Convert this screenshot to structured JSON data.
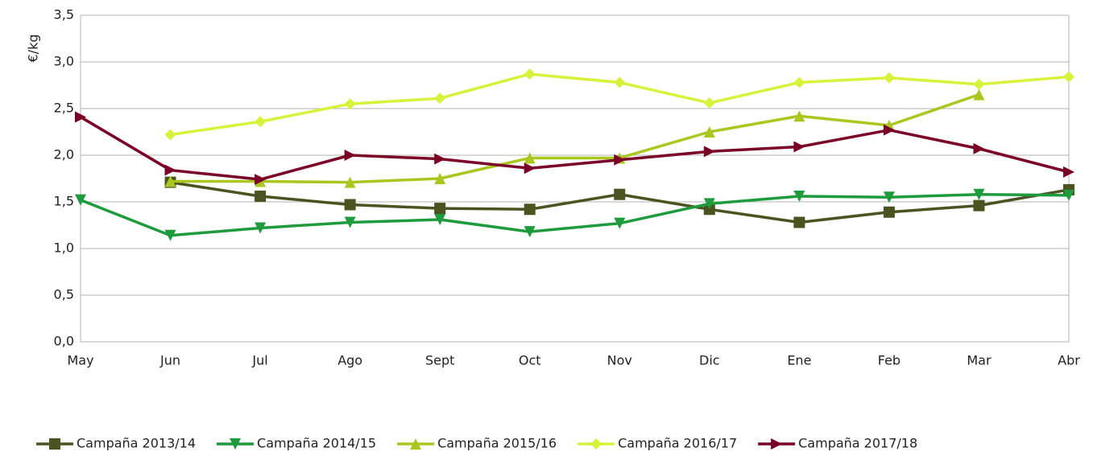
{
  "chart_data": {
    "type": "line",
    "y_label": "€/kg",
    "categories": [
      "May",
      "Jun",
      "Jul",
      "Ago",
      "Sept",
      "Oct",
      "Nov",
      "Dic",
      "Ene",
      "Feb",
      "Mar",
      "Abr"
    ],
    "ylim": [
      0,
      3.5
    ],
    "yticks": [
      {
        "value": 0,
        "label": "0,0"
      },
      {
        "value": 0.5,
        "label": "0,5"
      },
      {
        "value": 1,
        "label": "1,0"
      },
      {
        "value": 1.5,
        "label": "1,5"
      },
      {
        "value": 2,
        "label": "2,0"
      },
      {
        "value": 2.5,
        "label": "2,5"
      },
      {
        "value": 3,
        "label": "3,0"
      },
      {
        "value": 3.5,
        "label": "3,5"
      }
    ],
    "grid": true,
    "legend": "bottom",
    "series": [
      {
        "name": "Campaña 2013/14",
        "color": "#4b5320",
        "marker": "square",
        "values": [
          null,
          1.71,
          1.56,
          1.47,
          1.43,
          1.42,
          1.58,
          1.42,
          1.28,
          1.39,
          1.46,
          1.63
        ]
      },
      {
        "name": "Campaña 2014/15",
        "color": "#1e9b3c",
        "marker": "triangle-down",
        "values": [
          1.52,
          1.14,
          1.22,
          1.28,
          1.31,
          1.18,
          1.27,
          1.48,
          1.56,
          1.55,
          1.58,
          1.57
        ]
      },
      {
        "name": "Campaña 2015/16",
        "color": "#a9c71f",
        "marker": "triangle-up",
        "values": [
          null,
          1.72,
          1.72,
          1.71,
          1.75,
          1.97,
          1.97,
          2.25,
          2.42,
          2.32,
          2.65,
          null
        ]
      },
      {
        "name": "Campaña 2016/17",
        "color": "#d6f23a",
        "marker": "diamond",
        "values": [
          null,
          2.22,
          2.36,
          2.55,
          2.61,
          2.87,
          2.78,
          2.56,
          2.78,
          2.83,
          2.76,
          2.84
        ]
      },
      {
        "name": "Campaña 2017/18",
        "color": "#7b0028",
        "marker": "triangle-right",
        "values": [
          2.41,
          1.84,
          1.74,
          2.0,
          1.96,
          1.86,
          1.95,
          2.04,
          2.09,
          2.27,
          2.07,
          1.82
        ]
      }
    ]
  }
}
